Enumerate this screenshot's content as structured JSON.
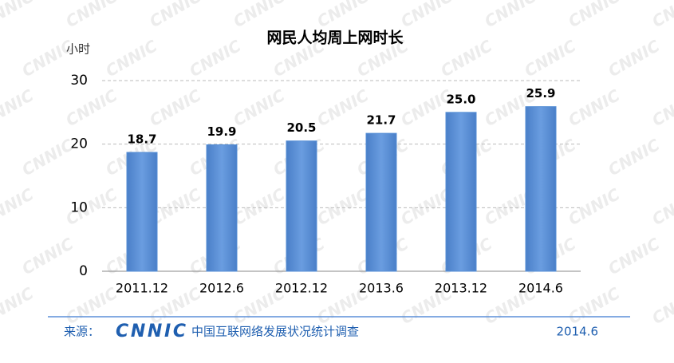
{
  "chart_data": {
    "type": "bar",
    "title": "网民人均周上网时长",
    "y_label": "小时",
    "categories": [
      "2011.12",
      "2012.6",
      "2012.12",
      "2013.6",
      "2013.12",
      "2014.6"
    ],
    "values": [
      18.7,
      19.9,
      20.5,
      21.7,
      25.0,
      25.9
    ],
    "value_labels": [
      "18.7",
      "19.9",
      "20.5",
      "21.7",
      "25.0",
      "25.9"
    ],
    "color": "#558ed5",
    "ylim": [
      0,
      30
    ],
    "yticks": [
      0,
      10,
      20,
      30
    ],
    "grid": true
  },
  "footer": {
    "source_label": "来源：",
    "logo": "CNNIC",
    "org": "中国互联网络发展状况统计调查",
    "date": "2014.6"
  },
  "watermark": "CNNIC"
}
